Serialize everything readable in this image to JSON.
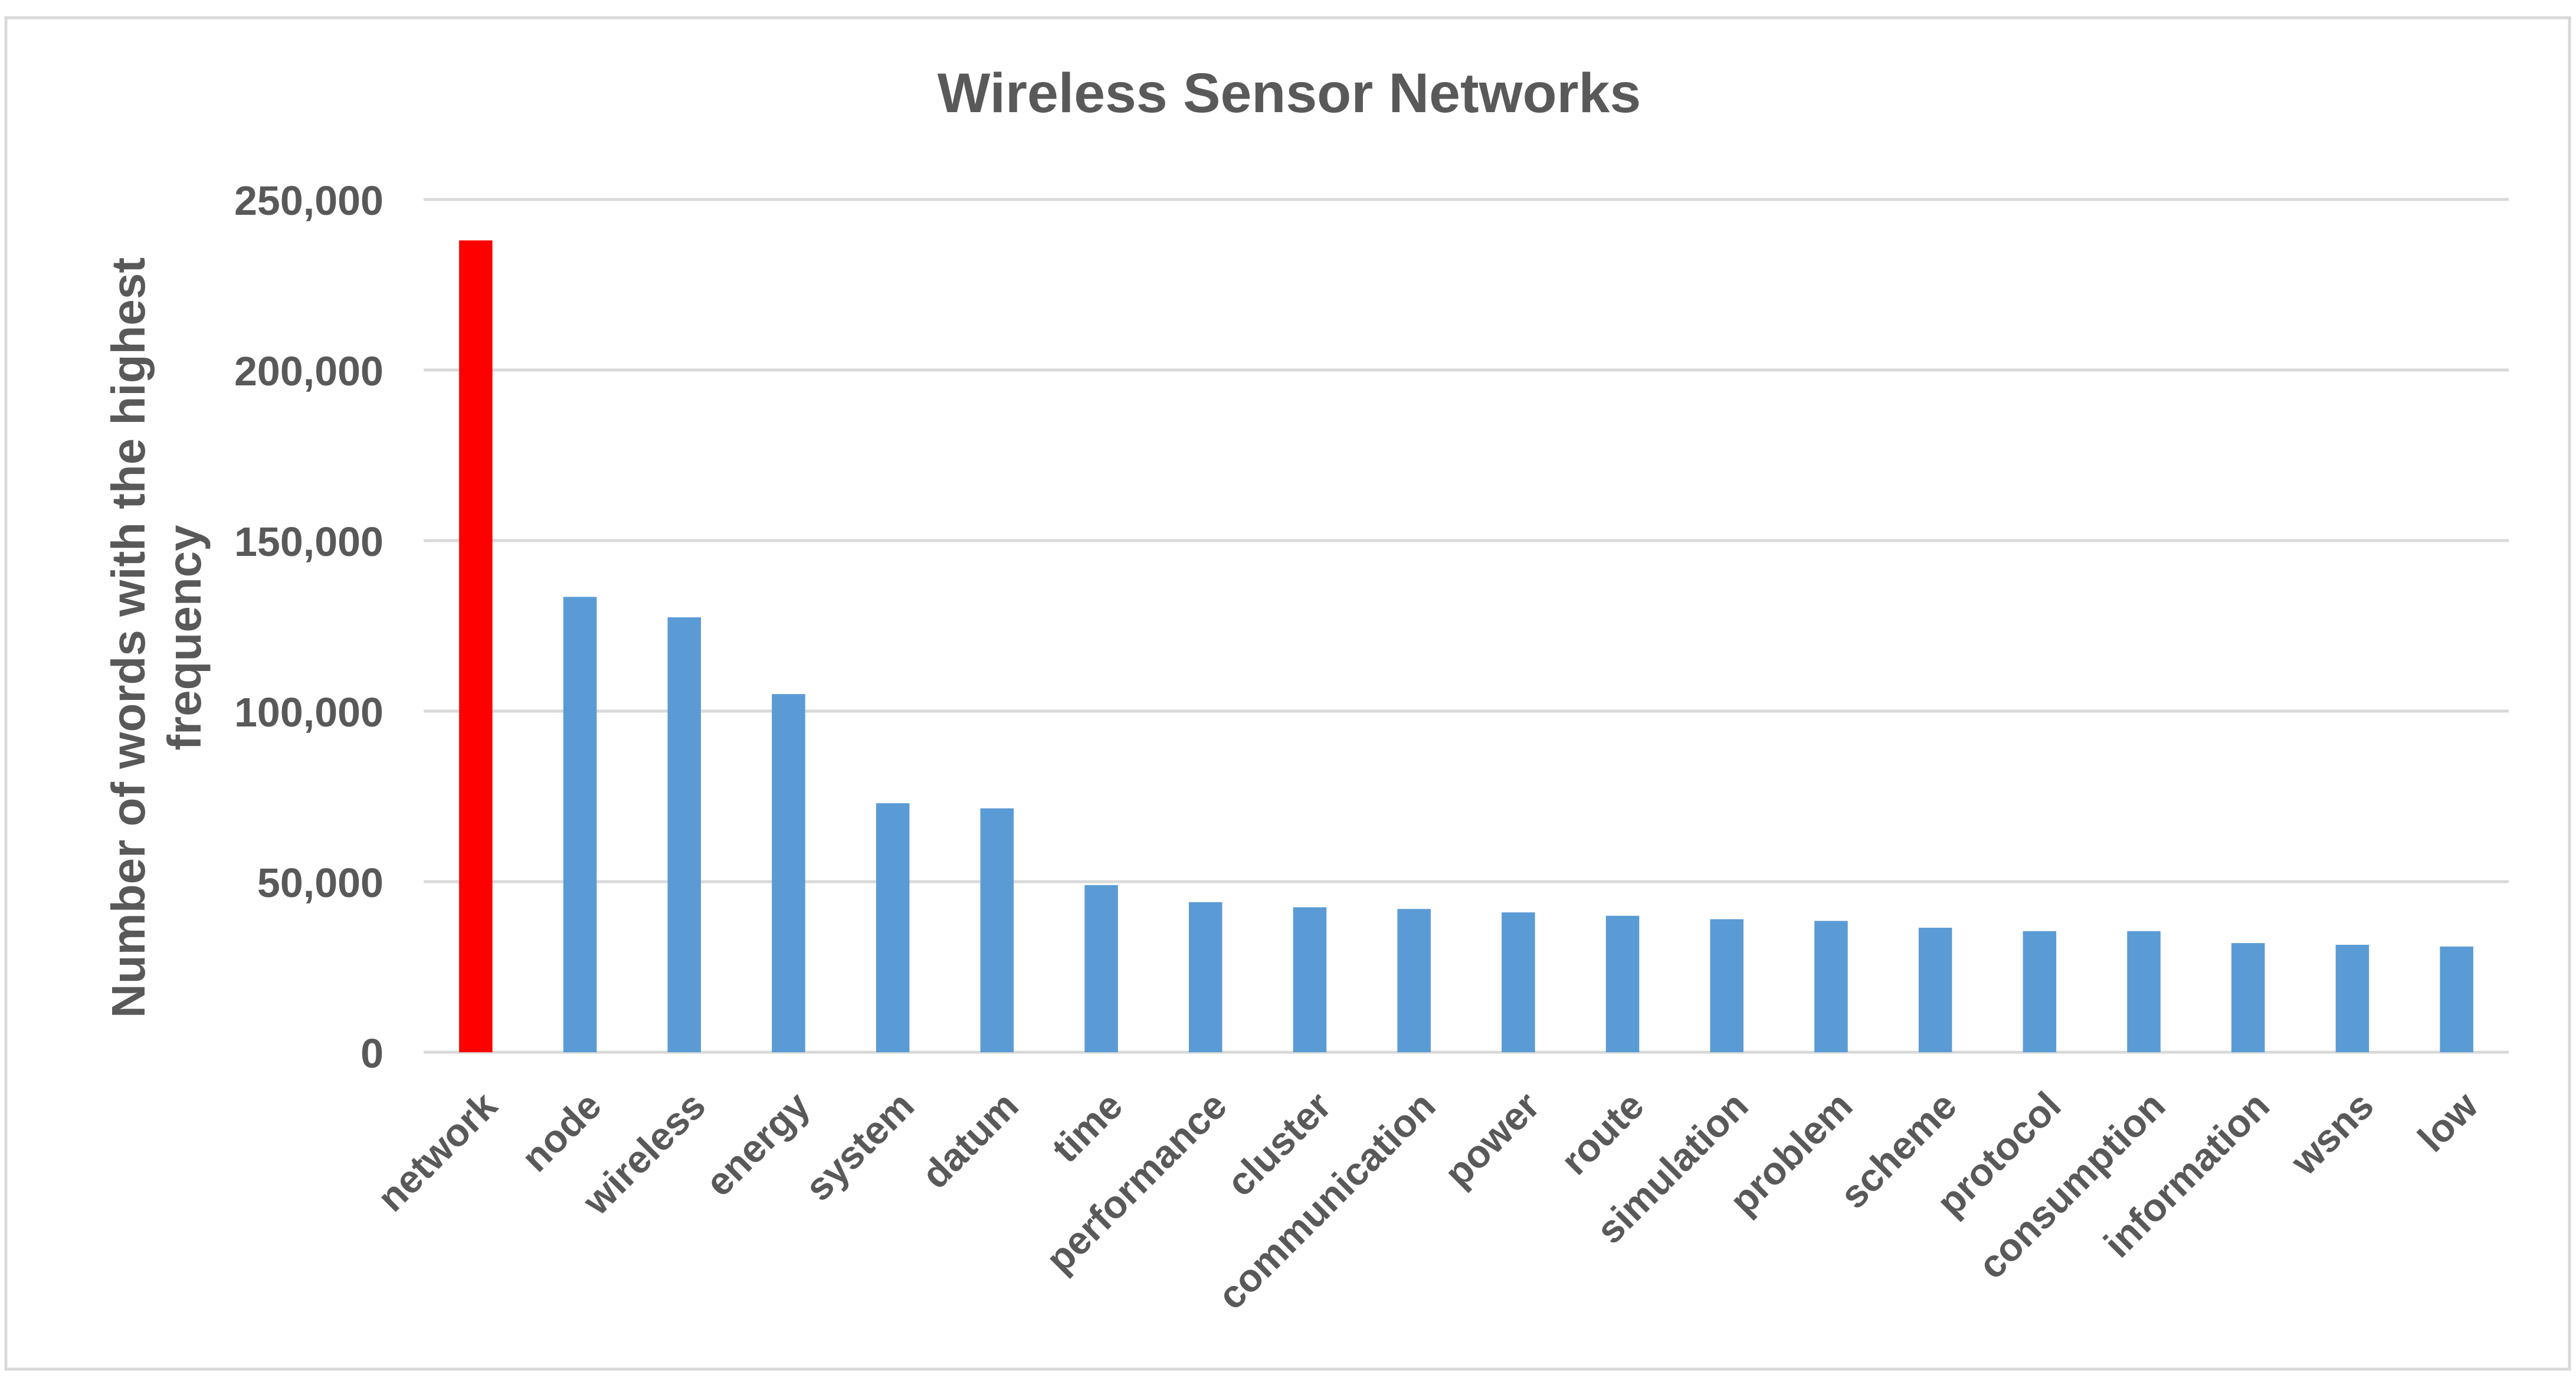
{
  "chart_data": {
    "type": "bar",
    "title": "Wireless Sensor Networks",
    "xlabel": "",
    "ylabel": "Number of words with the highest frequency",
    "ylim": [
      0,
      250000
    ],
    "yticks": [
      0,
      50000,
      100000,
      150000,
      200000,
      250000
    ],
    "ytick_labels": [
      "0",
      "50,000",
      "100,000",
      "150,000",
      "200,000",
      "250,000"
    ],
    "grid": true,
    "legend": "none",
    "categories": [
      "network",
      "node",
      "wireless",
      "energy",
      "system",
      "datum",
      "time",
      "performance",
      "cluster",
      "communication",
      "power",
      "route",
      "simulation",
      "problem",
      "scheme",
      "protocol",
      "consumption",
      "information",
      "wsns",
      "low"
    ],
    "values": [
      238000,
      133500,
      127500,
      105000,
      73000,
      71500,
      49000,
      44000,
      42500,
      42000,
      41000,
      40000,
      39000,
      38500,
      36500,
      35500,
      35500,
      32000,
      31500,
      31000
    ],
    "colors": {
      "highlight": "#ff0000",
      "bar": "#5b9bd5",
      "grid": "#d9d9d9",
      "axis": "#d9d9d9",
      "text": "#595959",
      "border": "#d9d9d9"
    },
    "highlight_index": 0
  }
}
